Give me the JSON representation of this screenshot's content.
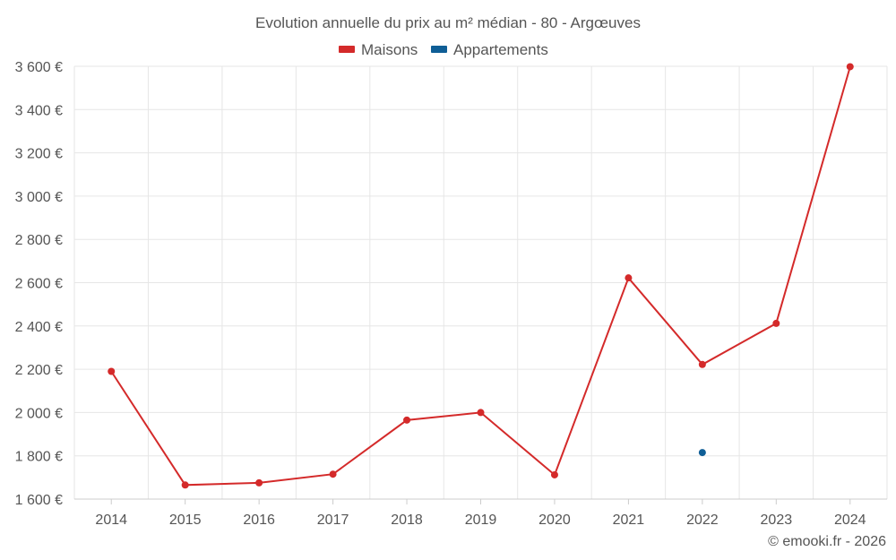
{
  "chart_data": {
    "type": "line",
    "title": "Evolution annuelle du prix au m² médian - 80 - Argœuves",
    "categories": [
      "2014",
      "2015",
      "2016",
      "2017",
      "2018",
      "2019",
      "2020",
      "2021",
      "2022",
      "2023",
      "2024"
    ],
    "series": [
      {
        "name": "Maisons",
        "color": "#d42a2a",
        "values": [
          2190,
          1665,
          1675,
          1715,
          1965,
          2000,
          1712,
          2622,
          2222,
          2412,
          3598
        ]
      },
      {
        "name": "Appartements",
        "color": "#0f5e96",
        "values": [
          null,
          null,
          null,
          null,
          null,
          null,
          null,
          null,
          1815,
          null,
          null
        ]
      }
    ],
    "ylim": [
      1600,
      3600
    ],
    "yticks": [
      1600,
      1800,
      2000,
      2200,
      2400,
      2600,
      2800,
      3000,
      3200,
      3400,
      3600
    ],
    "ytick_labels": [
      "1 600 €",
      "1 800 €",
      "2 000 €",
      "2 200 €",
      "2 400 €",
      "2 600 €",
      "2 800 €",
      "3 000 €",
      "3 200 €",
      "3 400 €",
      "3 600 €"
    ],
    "grid": true,
    "legend_position": "top-center",
    "credit": "© emooki.fr - 2026"
  }
}
